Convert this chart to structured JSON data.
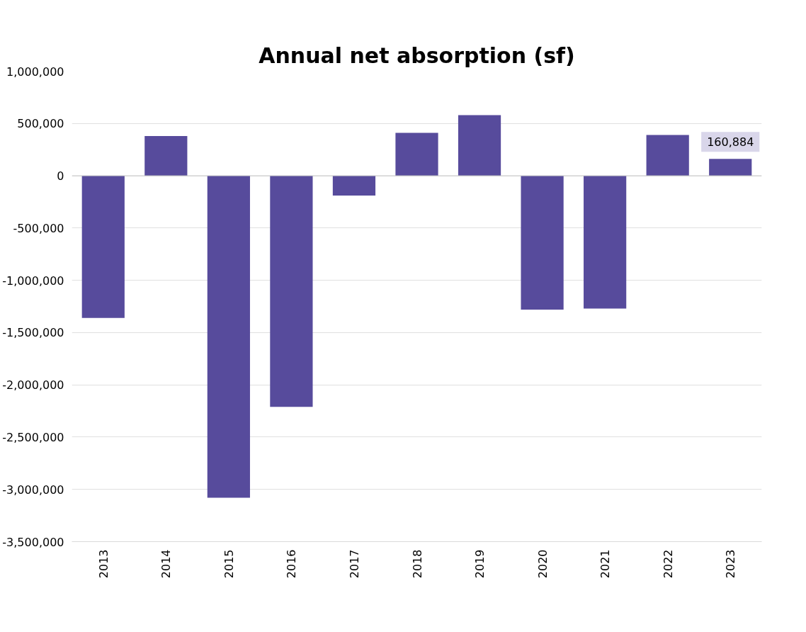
{
  "chart_data": {
    "type": "bar",
    "title": "Annual net absorption (sf)",
    "categories": [
      "2013",
      "2014",
      "2015",
      "2016",
      "2017",
      "2018",
      "2019",
      "2020",
      "2021",
      "2022",
      "2023"
    ],
    "values": [
      -1360000,
      380000,
      -3080000,
      -2210000,
      -190000,
      410000,
      580000,
      -1280000,
      -1270000,
      390000,
      160884
    ],
    "value_labels": [
      null,
      null,
      null,
      null,
      null,
      null,
      null,
      null,
      null,
      null,
      "160,884"
    ],
    "color": "#574b9c",
    "ylim": [
      -3500000,
      1000000
    ],
    "yticks": [
      {
        "value": -3500000,
        "label": "-3,500,000"
      },
      {
        "value": -3000000,
        "label": "-3,000,000"
      },
      {
        "value": -2500000,
        "label": "-2,500,000"
      },
      {
        "value": -2000000,
        "label": "-2,000,000"
      },
      {
        "value": -1500000,
        "label": "-1,500,000"
      },
      {
        "value": -1000000,
        "label": "-1,000,000"
      },
      {
        "value": -500000,
        "label": "-500,000"
      },
      {
        "value": 0,
        "label": "0"
      },
      {
        "value": 500000,
        "label": "500,000"
      },
      {
        "value": 1000000,
        "label": "1,000,000"
      }
    ],
    "grid": "y"
  }
}
